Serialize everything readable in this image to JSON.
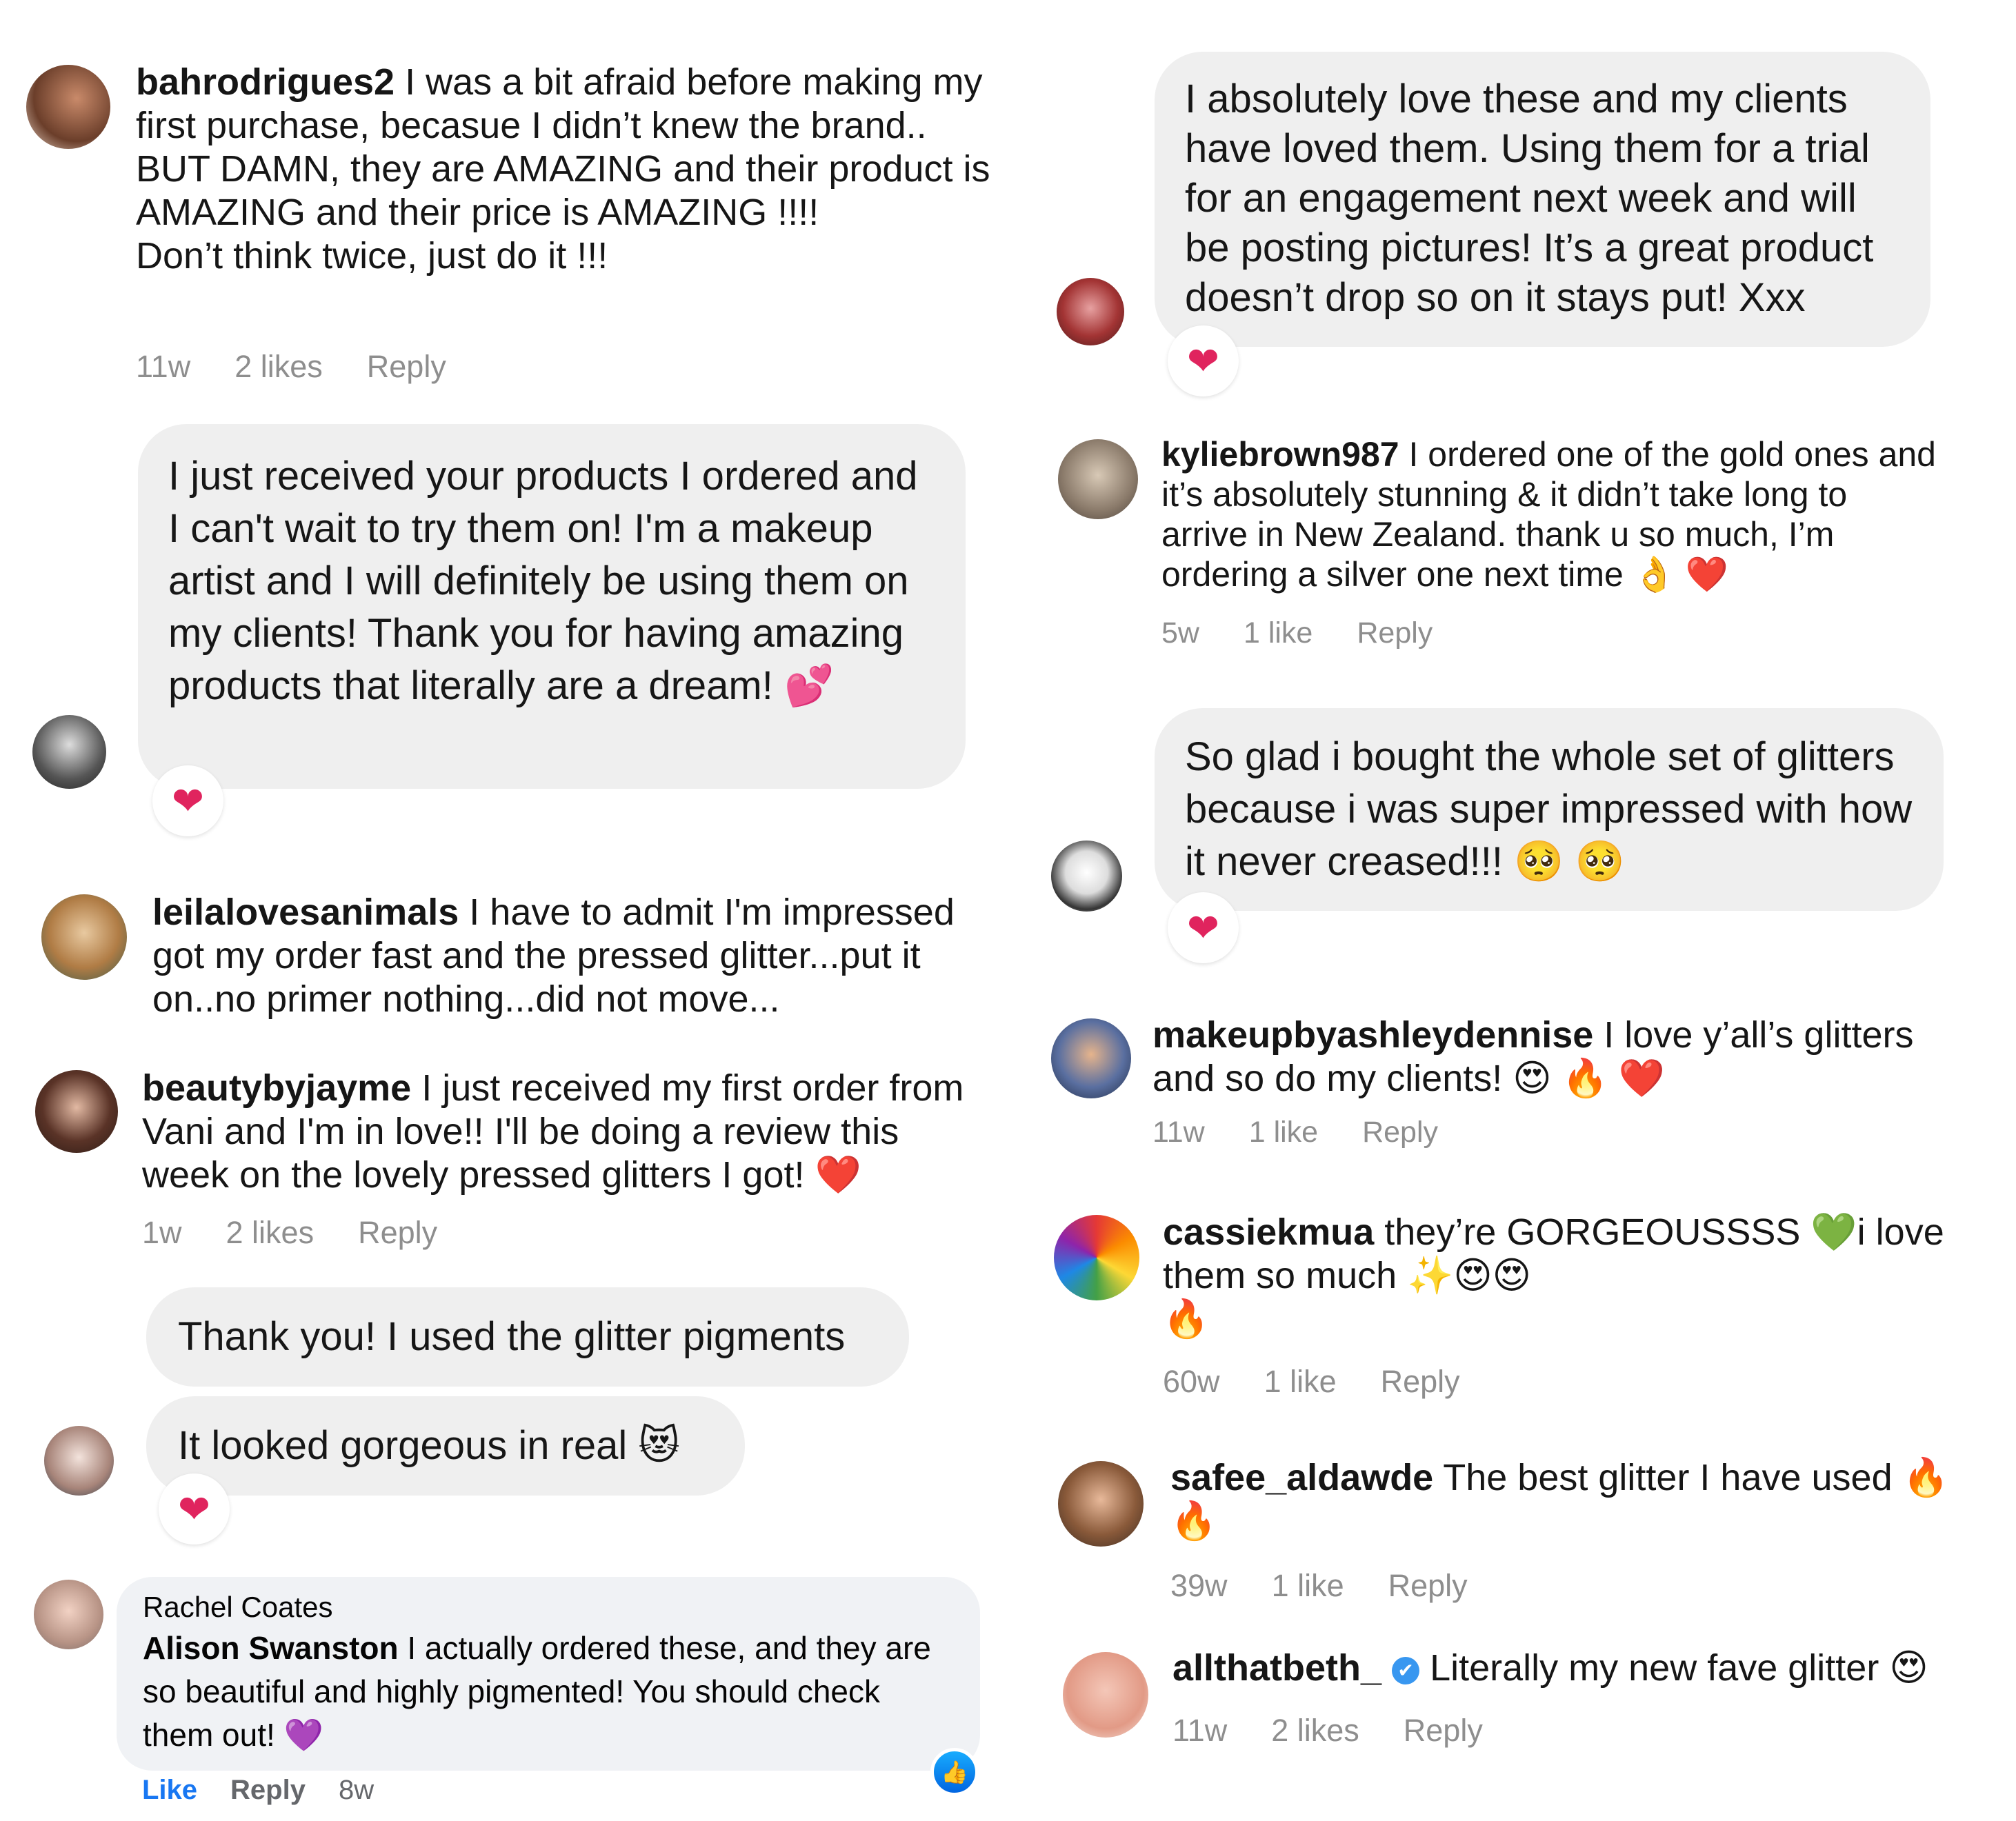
{
  "left": {
    "c1": {
      "user": "bahrodrigues2",
      "text": "I was a bit afraid before making my first purchase, becasue I didn’t knew the brand.. BUT DAMN, they are AMAZING and their product is AMAZING and their price is AMAZING !!!!",
      "text2": "Don’t think twice, just do it !!!",
      "time": "11w",
      "likes": "2 likes",
      "reply": "Reply"
    },
    "b1": {
      "text": "I just received your products I ordered and I can't wait to try them on! I'm a makeup artist and I will definitely be using them on my clients! Thank you for having amazing products that literally are a dream! 💕",
      "reaction": "❤"
    },
    "c2": {
      "user": "leilalovesanimals",
      "text": "I have to admit I'm impressed got my order fast and the pressed glitter...put it on..no primer nothing...did not move..."
    },
    "c3": {
      "user": "beautybyjayme",
      "text": "I just received my first order from Vani and I'm in love!! I'll be doing a review this week on the lovely pressed glitters I got! ❤️",
      "time": "1w",
      "likes": "2 likes",
      "reply": "Reply"
    },
    "b2": {
      "text1": "Thank you! I used the glitter pigments",
      "text2": "It looked gorgeous in real 😻",
      "reaction": "❤"
    },
    "fb": {
      "name": "Rachel Coates",
      "mention": "Alison Swanston",
      "text": "I actually ordered these, and they are so beautiful and highly pigmented! You should check them out! 💜",
      "like": "Like",
      "reply": "Reply",
      "time": "8w"
    }
  },
  "right": {
    "b1": {
      "text": "I absolutely love these and my clients have loved them. Using them for a trial for an engagement next week and will be posting pictures! It’s a great product doesn’t drop so on it stays put! Xxx",
      "reaction": "❤"
    },
    "c1": {
      "user": "kyliebrown987",
      "text": "I ordered one of the gold ones and it’s absolutely stunning & it didn’t take long to arrive in New Zealand. thank u so much, I’m ordering a silver one next time 👌 ❤️",
      "time": "5w",
      "likes": "1 like",
      "reply": "Reply"
    },
    "b2": {
      "text": "So glad i bought the whole set of glitters because i was super impressed with how it never creased!!! 🥺 🥺",
      "reaction": "❤"
    },
    "c2": {
      "user": "makeupbyashleydennise",
      "text": "I love y’all’s glitters and so do my clients! 😍 🔥 ❤️",
      "time": "11w",
      "likes": "1 like",
      "reply": "Reply"
    },
    "c3": {
      "user": "cassiekmua",
      "text": "they’re GORGEOUSSSS 💚i love them so much ✨😍😍",
      "text2": "🔥",
      "time": "60w",
      "likes": "1 like",
      "reply": "Reply"
    },
    "c4": {
      "user": "safee_aldawde",
      "text": "The best glitter I have used 🔥 🔥",
      "time": "39w",
      "likes": "1 like",
      "reply": "Reply"
    },
    "c5": {
      "user": "allthatbeth_",
      "verified": "✔",
      "text": "Literally my new fave glitter 😍",
      "time": "11w",
      "likes": "2 likes",
      "reply": "Reply"
    }
  },
  "colors": {
    "bubble": "#efefef",
    "meta": "#8e8e8e",
    "heart": "#e0245e",
    "fb_link": "#1877f2",
    "verified": "#3897f0"
  }
}
